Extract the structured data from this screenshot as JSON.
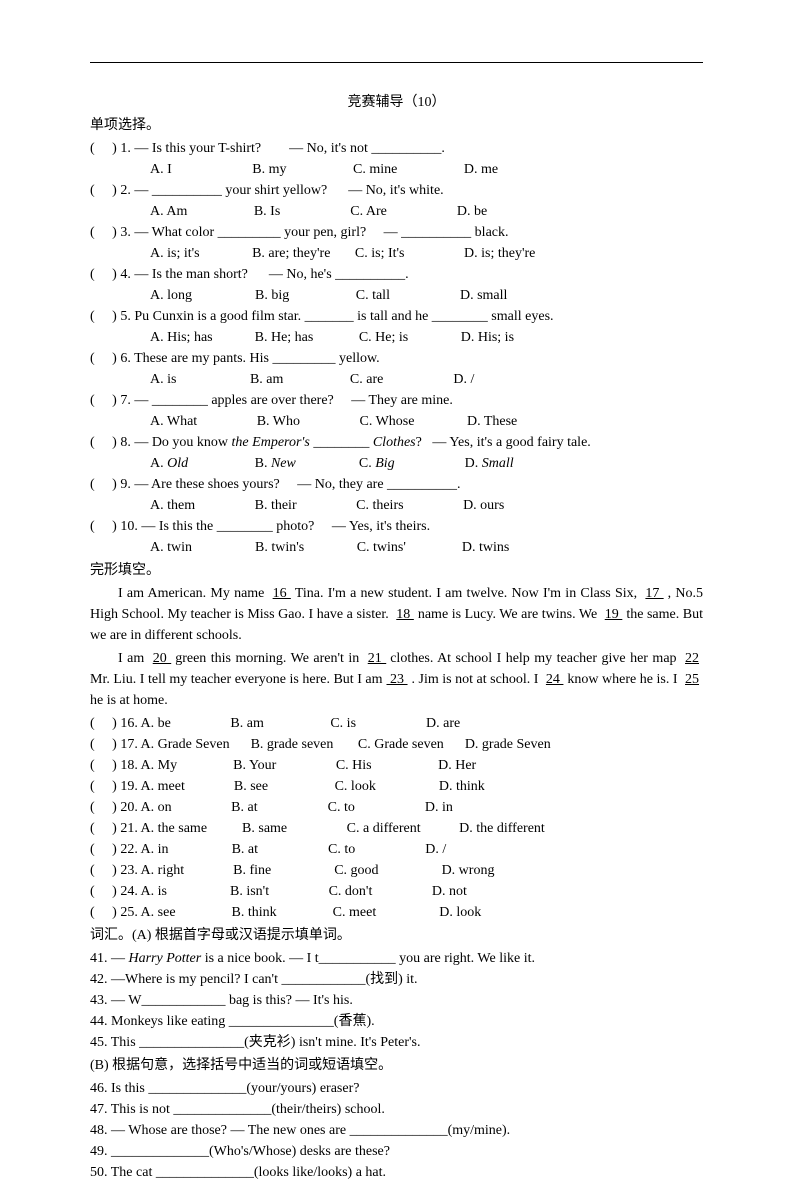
{
  "title": "竞赛辅导（10）",
  "section1": "单项选择。",
  "q1": {
    "stem": "(     ) 1. — Is this your T-shirt?        — No, it's not __________.",
    "a": "A. I",
    "b": "B. my",
    "c": "C. mine",
    "d": "D. me"
  },
  "q2": {
    "stem": "(     ) 2. — __________ your shirt yellow?      — No, it's white.",
    "a": "A. Am",
    "b": "B. Is",
    "c": "C. Are",
    "d": "D. be"
  },
  "q3": {
    "stem": "(     ) 3. — What color _________ your pen, girl?     — __________ black.",
    "a": "A. is; it's",
    "b": "B. are; they're",
    "c": "C. is; It's",
    "d": "D. is; they're"
  },
  "q4": {
    "stem": "(     ) 4. — Is the man short?      — No, he's __________.",
    "a": "A. long",
    "b": "B. big",
    "c": "C. tall",
    "d": "D. small"
  },
  "q5": {
    "stem": "(     ) 5. Pu Cunxin is a good film star. _______ is tall and he ________ small eyes.",
    "a": "A. His; has",
    "b": "B. He; has",
    "c": "C. He; is",
    "d": "D. His; is"
  },
  "q6": {
    "stem": "(     ) 6. These are my pants. His _________ yellow.",
    "a": "A. is",
    "b": "B. am",
    "c": "C. are",
    "d": "D. /"
  },
  "q7": {
    "stem": "(     ) 7. — ________ apples are over there?     — They are mine.",
    "a": "A. What",
    "b": "B. Who",
    "c": "C. Whose",
    "d": "D. These"
  },
  "q8": {
    "stem_a": "(     ) 8. — Do you know ",
    "stem_it1": "the Emperor's ________ Clothes",
    "stem_b": "?   — Yes, it's a good fairy tale.",
    "a": "Old",
    "b": "New",
    "c": "Big",
    "d": "Small"
  },
  "q9": {
    "stem": "(     ) 9. — Are these shoes yours?     — No, they are __________.",
    "a": "A. them",
    "b": "B. their",
    "c": "C. theirs",
    "d": "D. ours"
  },
  "q10": {
    "stem": "(     ) 10. — Is this the ________ photo?     — Yes, it's theirs.",
    "a": "A. twin",
    "b": "B. twin's",
    "c": "C. twins'",
    "d": "D. twins"
  },
  "section2": "完形填空。",
  "cloze1a": "I am American. My name ",
  "n16": "  16  ",
  "cloze1b": " Tina. I'm a new student. I am twelve. Now I'm in Class Six, ",
  "n17": "  17  ",
  "cloze1c": ", No.5 High School. My teacher is Miss Gao. I have a sister. ",
  "n18": "  18  ",
  "cloze1d": " name is Lucy. We are twins. We ",
  "n19": "  19  ",
  "cloze1e": " the same. But we are in different schools.",
  "cloze2a": "I am ",
  "n20": "  20  ",
  "cloze2b": " green this morning. We aren't in ",
  "n21": "  21  ",
  "cloze2c": " clothes. At school I help my teacher give her map ",
  "n22": "  22  ",
  "cloze2d": " Mr. Liu. I tell my teacher everyone is here. But I am",
  "n23": " 23    ",
  "cloze2e": ". Jim is not at school. I ",
  "n24": "  24  ",
  "cloze2f": " know where he is. I ",
  "n25": "  25  ",
  "cloze2g": " he is at home.",
  "c16": {
    "l": "(     ) 16. A. be",
    "b": "B. am",
    "c": "C. is",
    "d": "D. are"
  },
  "c17": {
    "l": "(     ) 17. A. Grade Seven",
    "b": "B. grade seven",
    "c": "C. Grade seven",
    "d": "D. grade Seven"
  },
  "c18": {
    "l": "(     ) 18. A. My",
    "b": "B. Your",
    "c": "C. His",
    "d": "D. Her"
  },
  "c19": {
    "l": "(     ) 19. A. meet",
    "b": "B. see",
    "c": "C. look",
    "d": "D. think"
  },
  "c20": {
    "l": "(     ) 20. A. on",
    "b": "B. at",
    "c": "C. to",
    "d": "D. in"
  },
  "c21": {
    "l": "(     ) 21. A. the same",
    "b": "B. same",
    "c": "C. a different",
    "d": "D. the different"
  },
  "c22": {
    "l": "(     ) 22. A. in",
    "b": "B. at",
    "c": "C. to",
    "d": "D. /"
  },
  "c23": {
    "l": "(     ) 23. A. right",
    "b": "B. fine",
    "c": "C. good",
    "d": "D. wrong"
  },
  "c24": {
    "l": "(     ) 24. A. is",
    "b": "B. isn't",
    "c": "C. don't",
    "d": "D. not"
  },
  "c25": {
    "l": "(     ) 25. A. see",
    "b": "B. think",
    "c": "C. meet",
    "d": "D. look"
  },
  "section3": "词汇。(A) 根据首字母或汉语提示填单词。",
  "v41a": "41. — ",
  "v41it": "Harry Potter",
  "v41b": " is a nice book.    — I t___________ you are right. We like it.",
  "v42": "42. —Where is my pencil? I can't ____________(找到) it.",
  "v43": "43. — W____________ bag is this?   — It's his.",
  "v44": "44. Monkeys like eating _______________(香蕉).",
  "v45": "45. This _______________(夹克衫) isn't mine. It's Peter's.",
  "section3b": "(B) 根据句意，选择括号中适当的词或短语填空。",
  "v46": "46. Is this ______________(your/yours) eraser?",
  "v47": "47. This is not ______________(their/theirs) school.",
  "v48": "48. — Whose are those?     — The new ones are ______________(my/mine).",
  "v49": "49. ______________(Who's/Whose) desks are these?",
  "v50": "50. The cat ______________(looks like/looks) a hat."
}
